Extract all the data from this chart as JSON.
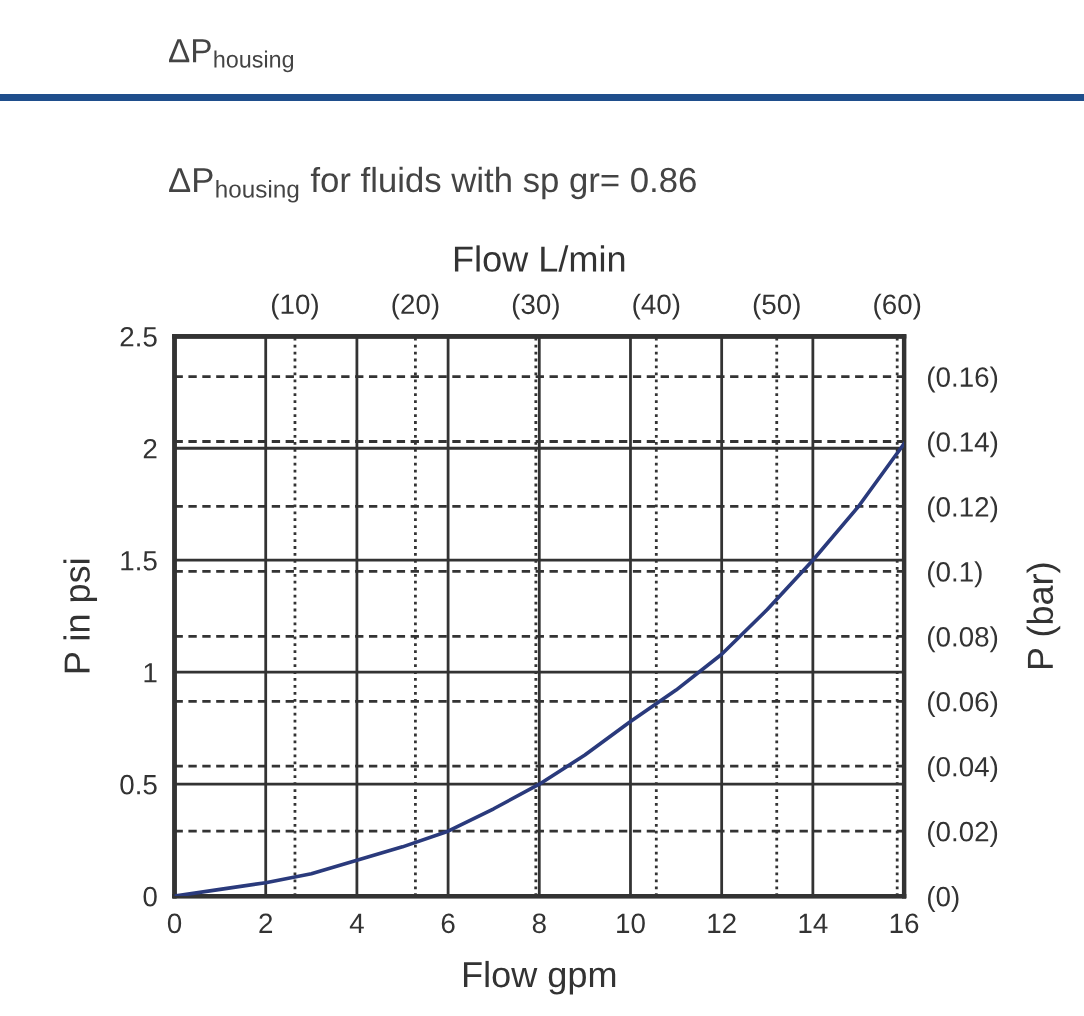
{
  "chart_data": {
    "type": "line",
    "title": "ΔP$_{housing}$",
    "subtitle": "ΔP$_{housing}$ for fluids with sp gr= 0.86",
    "xlabel": "Flow gpm",
    "ylabel": "P in psi",
    "y2label": "P (bar)",
    "x2label": "Flow L/min",
    "x": [
      0,
      1,
      2,
      3,
      4,
      5,
      6,
      7,
      8,
      9,
      10,
      11,
      12,
      13,
      14,
      15,
      16
    ],
    "series": [
      {
        "color": "#2a3a7c",
        "values": [
          0,
          0.03,
          0.06,
          0.1,
          0.16,
          0.22,
          0.29,
          0.39,
          0.5,
          0.63,
          0.78,
          0.92,
          1.08,
          1.28,
          1.5,
          1.74,
          2.02
        ]
      }
    ],
    "xlim": [
      0,
      16
    ],
    "xticks": [
      0,
      2,
      4,
      6,
      8,
      10,
      12,
      14,
      16
    ],
    "ylim": [
      0,
      2.5
    ],
    "yticks": [
      0,
      0.5,
      1,
      1.5,
      2,
      2.5
    ],
    "x2lim": [
      0,
      60.57
    ],
    "x2ticks": [
      {
        "value": 10,
        "label": "(10)"
      },
      {
        "value": 20,
        "label": "(20)"
      },
      {
        "value": 30,
        "label": "(30)"
      },
      {
        "value": 40,
        "label": "(40)"
      },
      {
        "value": 50,
        "label": "(50)"
      },
      {
        "value": 60,
        "label": "(60)"
      }
    ],
    "y2lim": [
      0,
      0.1724
    ],
    "y2ticks": [
      {
        "value": 0,
        "label": "(0)"
      },
      {
        "value": 0.02,
        "label": "(0.02)"
      },
      {
        "value": 0.04,
        "label": "(0.04)"
      },
      {
        "value": 0.06,
        "label": "(0.06)"
      },
      {
        "value": 0.08,
        "label": "(0.08)"
      },
      {
        "value": 0.1,
        "label": "(0.1)"
      },
      {
        "value": 0.12,
        "label": "(0.12)"
      },
      {
        "value": 0.14,
        "label": "(0.14)"
      },
      {
        "value": 0.16,
        "label": "(0.16)"
      }
    ],
    "grid": true,
    "marker": "none",
    "line_style": "solid"
  }
}
